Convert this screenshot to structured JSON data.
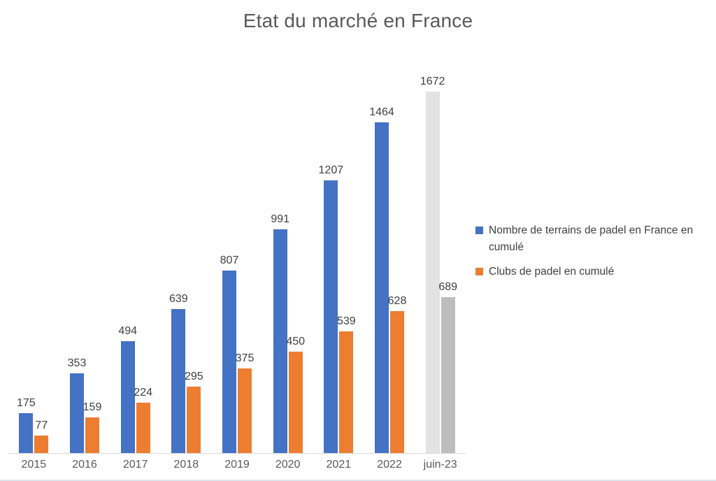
{
  "title": "Etat du marché en France",
  "colors": {
    "terrains_bar": "#4472C4",
    "clubs_bar": "#ED7D31",
    "terrains_bar_juin23": "#E3E3E3",
    "clubs_bar_juin23": "#BDBDBD",
    "axis_line": "#D9D9D9",
    "title_text": "#595959",
    "tick_text": "#595959",
    "value_label_text": "#404040",
    "legend_text": "#404040"
  },
  "legend": {
    "items": [
      {
        "label": "Nombre de terrains de padel en France en cumulé",
        "color": "#4472C4",
        "marker": "square-icon"
      },
      {
        "label": "Clubs de padel en cumulé",
        "color": "#ED7D31",
        "marker": "square-icon"
      }
    ]
  },
  "chart_data": {
    "type": "bar",
    "title": "Etat du marché en France",
    "categories": [
      "2015",
      "2016",
      "2017",
      "2018",
      "2019",
      "2020",
      "2021",
      "2022",
      "juin-23"
    ],
    "series": [
      {
        "name": "Nombre de terrains de padel en France en cumulé",
        "color": "#4472C4",
        "values": [
          175,
          353,
          494,
          639,
          807,
          991,
          1207,
          1464,
          1672
        ]
      },
      {
        "name": "Clubs de padel en cumulé",
        "color": "#ED7D31",
        "values": [
          77,
          159,
          224,
          295,
          375,
          450,
          539,
          628,
          689
        ]
      }
    ],
    "highlight_category": {
      "category": "juin-23",
      "series_colors": [
        "#E3E3E3",
        "#BDBDBD"
      ]
    },
    "xlabel": "",
    "ylabel": "",
    "ylim": [
      0,
      1672
    ],
    "grid": false,
    "data_labels": true,
    "legend_position": "right"
  }
}
